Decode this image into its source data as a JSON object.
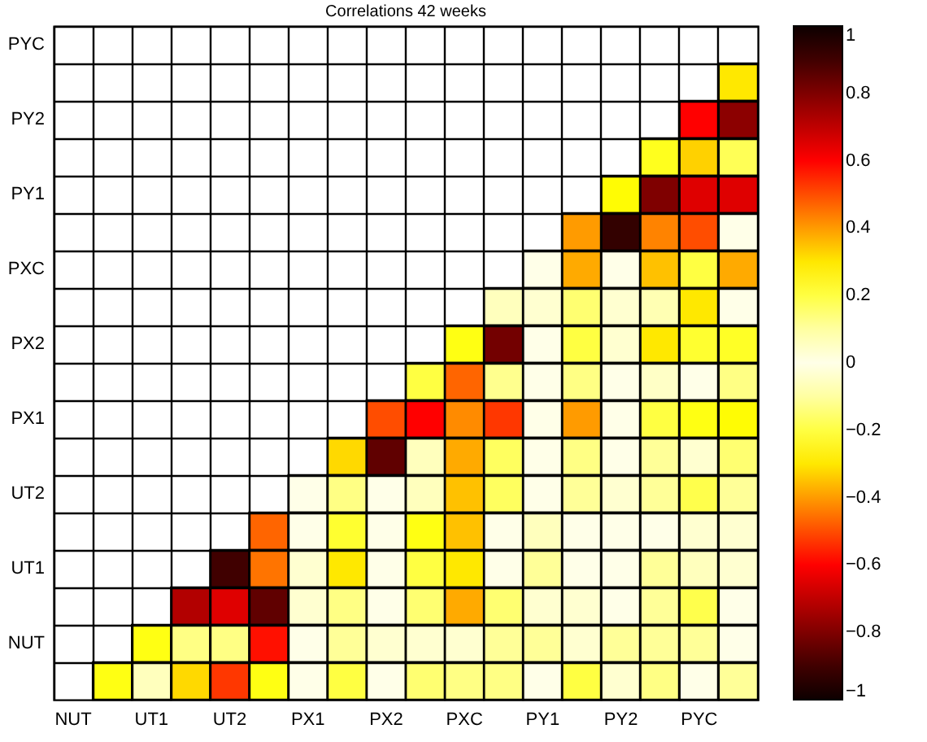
{
  "chart_data": {
    "type": "heatmap",
    "title": "Correlations 42 weeks",
    "categories": [
      "NUT",
      null,
      "UT1",
      null,
      "UT2",
      null,
      "PX1",
      null,
      "PX2",
      null,
      "PXC",
      null,
      "PY1",
      null,
      "PY2",
      null,
      "PYC",
      null
    ],
    "y_categories": [
      "PYC",
      null,
      "PY2",
      null,
      "PY1",
      null,
      "PXC",
      null,
      "PX2",
      null,
      "PX1",
      null,
      "UT2",
      null,
      "UT1",
      null,
      "NUT",
      null
    ],
    "cells": [
      [
        null,
        null,
        null,
        null,
        null,
        null,
        null,
        null,
        null,
        null,
        null,
        null,
        null,
        null,
        null,
        null,
        null,
        null
      ],
      [
        null,
        null,
        null,
        null,
        null,
        null,
        null,
        null,
        null,
        null,
        null,
        null,
        null,
        null,
        null,
        null,
        null,
        0.3
      ],
      [
        null,
        null,
        null,
        null,
        null,
        null,
        null,
        null,
        null,
        null,
        null,
        null,
        null,
        null,
        null,
        null,
        0.6,
        0.78
      ],
      [
        null,
        null,
        null,
        null,
        null,
        null,
        null,
        null,
        null,
        null,
        null,
        null,
        null,
        null,
        null,
        0.24,
        0.33,
        0.18
      ],
      [
        null,
        null,
        null,
        null,
        null,
        null,
        null,
        null,
        null,
        null,
        null,
        null,
        null,
        null,
        0.27,
        0.8,
        0.65,
        0.65
      ],
      [
        null,
        null,
        null,
        null,
        null,
        null,
        null,
        null,
        null,
        null,
        null,
        null,
        null,
        0.4,
        0.92,
        0.43,
        0.5,
        0
      ],
      [
        null,
        null,
        null,
        null,
        null,
        null,
        null,
        null,
        null,
        null,
        null,
        null,
        0,
        0.38,
        0,
        0.35,
        0.2,
        0.38
      ],
      [
        null,
        null,
        null,
        null,
        null,
        null,
        null,
        null,
        null,
        null,
        null,
        0.07,
        0.05,
        0.15,
        0.05,
        0.08,
        0.3,
        0
      ],
      [
        null,
        null,
        null,
        null,
        null,
        null,
        null,
        null,
        null,
        null,
        0.25,
        0.82,
        0,
        0.2,
        0.05,
        0.3,
        0.22,
        0.23
      ],
      [
        null,
        null,
        null,
        null,
        null,
        null,
        null,
        null,
        null,
        0.2,
        0.47,
        0.12,
        0,
        0.13,
        0,
        0.06,
        0,
        0.13
      ],
      [
        null,
        null,
        null,
        null,
        null,
        null,
        null,
        null,
        0.5,
        0.6,
        0.42,
        0.53,
        0,
        0.4,
        0,
        0.2,
        0.25,
        0.27
      ],
      [
        null,
        null,
        null,
        null,
        null,
        null,
        null,
        0.32,
        0.85,
        0.07,
        0.38,
        0.17,
        0,
        0.13,
        0,
        0.11,
        0.05,
        0.15
      ],
      [
        null,
        null,
        null,
        null,
        null,
        null,
        0,
        0.13,
        0,
        0.07,
        0.35,
        0.17,
        0,
        0.11,
        0.05,
        0.11,
        0.19,
        0.11
      ],
      [
        null,
        null,
        null,
        null,
        null,
        0.47,
        0,
        0.22,
        0,
        0.25,
        0.35,
        0,
        0.07,
        0,
        0,
        0,
        0.05,
        0.05
      ],
      [
        null,
        null,
        null,
        null,
        0.9,
        0.45,
        0.05,
        0.3,
        0,
        0.2,
        0.3,
        0,
        0.11,
        0,
        0,
        0.11,
        0.07,
        0.05
      ],
      [
        null,
        null,
        null,
        0.72,
        0.65,
        0.85,
        0.05,
        0.13,
        0,
        0.15,
        0.38,
        0.15,
        0.05,
        0.05,
        0,
        0.11,
        0.19,
        0
      ],
      [
        null,
        null,
        0.25,
        0.13,
        0.13,
        0.58,
        0,
        0.11,
        0.05,
        0.05,
        0.05,
        0.11,
        0.11,
        0.05,
        0.11,
        0.11,
        0.11,
        0
      ],
      [
        null,
        0.25,
        0.07,
        0.32,
        0.53,
        0.25,
        0,
        0.2,
        0,
        0.15,
        0.13,
        0.13,
        0,
        0.2,
        0.05,
        0.13,
        0,
        0.11
      ]
    ],
    "clim": [
      -1,
      1
    ],
    "cticks": [
      -1,
      -0.8,
      -0.6,
      -0.4,
      -0.2,
      0,
      0.2,
      0.4,
      0.6,
      0.8,
      1
    ],
    "grid": true
  }
}
